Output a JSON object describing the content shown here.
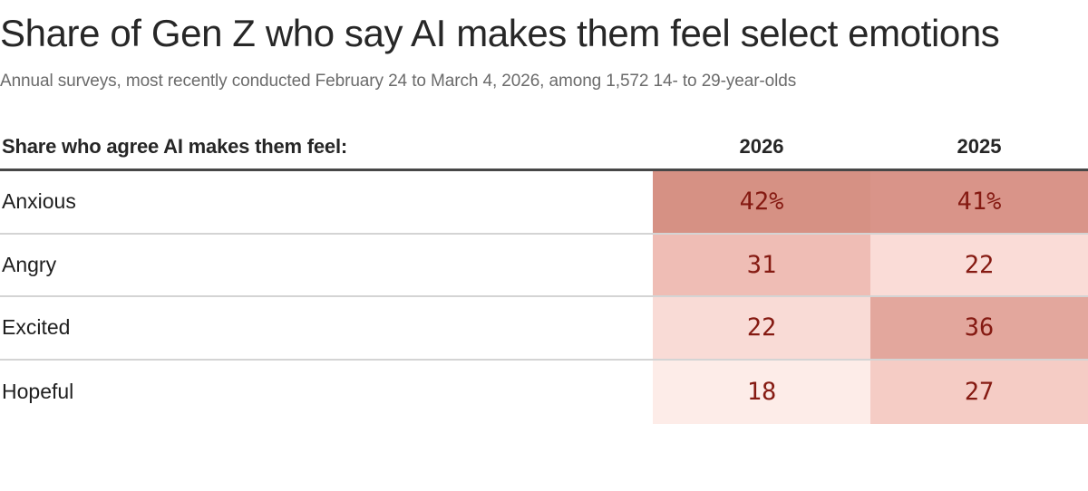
{
  "header": {
    "title": "Share of Gen Z who say AI makes them feel select emotions",
    "subtitle": "Annual surveys, most recently conducted February 24 to March 4, 2026, among 1,572 14- to 29-year-olds"
  },
  "table": {
    "row_header_label": "Share who agree AI makes them feel:",
    "year_columns": [
      "2026",
      "2025"
    ],
    "value_text_color": "#851a12",
    "rows": [
      {
        "emotion": "Anxious",
        "values": [
          {
            "text": "42%",
            "value": 42,
            "bg": "#d69184"
          },
          {
            "text": "41%",
            "value": 41,
            "bg": "#d99489"
          }
        ]
      },
      {
        "emotion": "Angry",
        "values": [
          {
            "text": "31",
            "value": 31,
            "bg": "#efbdb5"
          },
          {
            "text": "22",
            "value": 22,
            "bg": "#fadcd7"
          }
        ]
      },
      {
        "emotion": "Excited",
        "values": [
          {
            "text": "22",
            "value": 22,
            "bg": "#f9dbd6"
          },
          {
            "text": "36",
            "value": 36,
            "bg": "#e3a79d"
          }
        ]
      },
      {
        "emotion": "Hopeful",
        "values": [
          {
            "text": "18",
            "value": 18,
            "bg": "#fdece8"
          },
          {
            "text": "27",
            "value": 27,
            "bg": "#f5ccc5"
          }
        ]
      }
    ]
  },
  "chart_data": {
    "type": "table",
    "title": "Share of Gen Z who say AI makes them feel select emotions",
    "subtitle": "Annual surveys, most recently conducted February 24 to March 4, 2026, among 1,572 14- to 29-year-olds",
    "row_header": "Share who agree AI makes them feel:",
    "categories": [
      "Anxious",
      "Angry",
      "Excited",
      "Hopeful"
    ],
    "series": [
      {
        "name": "2026",
        "values": [
          42,
          31,
          22,
          18
        ]
      },
      {
        "name": "2025",
        "values": [
          41,
          22,
          36,
          27
        ]
      }
    ],
    "unit": "percent",
    "cell_shading": "red intensity proportional to value",
    "shading_min_color": "#ffffff",
    "shading_max_color": "#d69184"
  }
}
